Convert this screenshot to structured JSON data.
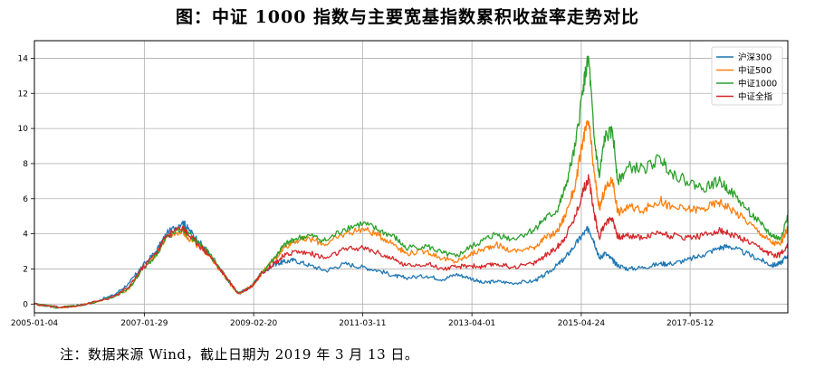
{
  "title": "图：中证 1000 指数与主要宽基指数累积收益率走势对比",
  "note": "注：数据来源 Wind，截止日期为 2019 年 3 月 13 日。",
  "chart_data": {
    "type": "line",
    "title": "",
    "xlabel": "",
    "ylabel": "",
    "x_tick_labels": [
      "2005-01-04",
      "2007-01-29",
      "2009-02-20",
      "2011-03-11",
      "2013-04-01",
      "2015-04-24",
      "2017-05-12"
    ],
    "x_tick_decimal_years": [
      2005.01,
      2007.08,
      2009.14,
      2011.19,
      2013.25,
      2015.31,
      2017.36
    ],
    "xlim_decimal_years": [
      2005.01,
      2019.2
    ],
    "ylim": [
      -0.5,
      15
    ],
    "y_ticks": [
      0,
      2,
      4,
      6,
      8,
      10,
      12,
      14
    ],
    "grid": true,
    "legend_position": "top-right",
    "x_decimal_years": [
      2005.0,
      2005.5,
      2006.0,
      2006.5,
      2006.8,
      2007.0,
      2007.3,
      2007.5,
      2007.8,
      2007.9,
      2008.1,
      2008.3,
      2008.6,
      2008.85,
      2009.1,
      2009.3,
      2009.55,
      2009.7,
      2009.9,
      2010.2,
      2010.5,
      2010.85,
      2011.2,
      2011.5,
      2011.8,
      2012.0,
      2012.4,
      2012.7,
      2012.95,
      2013.2,
      2013.45,
      2013.7,
      2014.0,
      2014.4,
      2014.6,
      2014.85,
      2015.0,
      2015.2,
      2015.35,
      2015.45,
      2015.55,
      2015.65,
      2015.75,
      2015.9,
      2016.0,
      2016.2,
      2016.5,
      2016.8,
      2017.0,
      2017.3,
      2017.6,
      2017.9,
      2018.1,
      2018.4,
      2018.7,
      2018.9,
      2019.05,
      2019.2
    ],
    "series": [
      {
        "name": "沪深300",
        "color": "#1f77b4",
        "values": [
          0,
          -0.2,
          0,
          0.5,
          1.2,
          2.0,
          3.0,
          4.0,
          4.7,
          4.3,
          3.6,
          2.8,
          1.6,
          0.6,
          1.0,
          1.8,
          2.3,
          2.4,
          2.5,
          2.2,
          1.9,
          2.3,
          2.1,
          1.9,
          1.6,
          1.5,
          1.6,
          1.4,
          1.7,
          1.5,
          1.2,
          1.3,
          1.2,
          1.3,
          1.6,
          2.2,
          2.6,
          3.4,
          4.0,
          4.3,
          3.6,
          2.6,
          2.9,
          2.5,
          2.2,
          2.0,
          2.1,
          2.3,
          2.3,
          2.5,
          2.8,
          3.2,
          3.3,
          2.9,
          2.5,
          2.2,
          2.3,
          2.8
        ]
      },
      {
        "name": "中证500",
        "color": "#ff7f0e",
        "values": [
          0,
          -0.2,
          0,
          0.4,
          0.9,
          1.8,
          2.8,
          3.8,
          4.2,
          3.8,
          3.3,
          2.8,
          1.5,
          0.6,
          1.0,
          1.8,
          2.6,
          3.2,
          3.6,
          3.7,
          3.4,
          4.0,
          4.3,
          3.9,
          3.4,
          2.9,
          3.0,
          2.6,
          2.4,
          2.8,
          3.1,
          3.4,
          3.0,
          3.2,
          3.7,
          4.1,
          5.0,
          6.8,
          9.5,
          10.4,
          7.5,
          5.4,
          6.5,
          7.1,
          5.2,
          5.5,
          5.4,
          5.9,
          5.5,
          5.4,
          5.4,
          5.8,
          5.5,
          4.8,
          4.0,
          3.5,
          3.4,
          4.3
        ]
      },
      {
        "name": "中证1000",
        "color": "#2ca02c",
        "values": [
          0,
          -0.2,
          0,
          0.4,
          0.9,
          1.8,
          2.8,
          3.8,
          4.3,
          4.0,
          3.5,
          2.9,
          1.6,
          0.6,
          1.0,
          1.8,
          2.7,
          3.3,
          3.7,
          3.9,
          3.6,
          4.3,
          4.6,
          4.2,
          3.8,
          3.2,
          3.3,
          2.9,
          2.7,
          3.2,
          3.6,
          4.0,
          3.7,
          4.2,
          4.8,
          5.3,
          6.5,
          9.0,
          12.5,
          14.0,
          9.5,
          7.2,
          9.5,
          9.8,
          7.0,
          7.8,
          7.7,
          8.3,
          7.5,
          7.0,
          6.6,
          7.0,
          6.5,
          5.5,
          4.5,
          3.9,
          3.7,
          5.0
        ]
      },
      {
        "name": "中证全指",
        "color": "#d62728",
        "values": [
          0,
          -0.2,
          0,
          0.4,
          1.0,
          1.9,
          2.9,
          3.9,
          4.4,
          4.0,
          3.4,
          2.8,
          1.6,
          0.6,
          1.0,
          1.8,
          2.4,
          2.7,
          3.0,
          2.9,
          2.6,
          3.1,
          3.2,
          2.9,
          2.5,
          2.2,
          2.3,
          2.0,
          2.1,
          2.2,
          2.1,
          2.3,
          2.1,
          2.3,
          2.7,
          3.2,
          3.8,
          5.0,
          6.5,
          7.2,
          5.2,
          3.8,
          4.6,
          4.9,
          3.8,
          3.9,
          3.8,
          4.1,
          3.9,
          3.8,
          3.9,
          4.2,
          4.0,
          3.6,
          3.1,
          2.8,
          2.8,
          3.4
        ]
      }
    ]
  }
}
